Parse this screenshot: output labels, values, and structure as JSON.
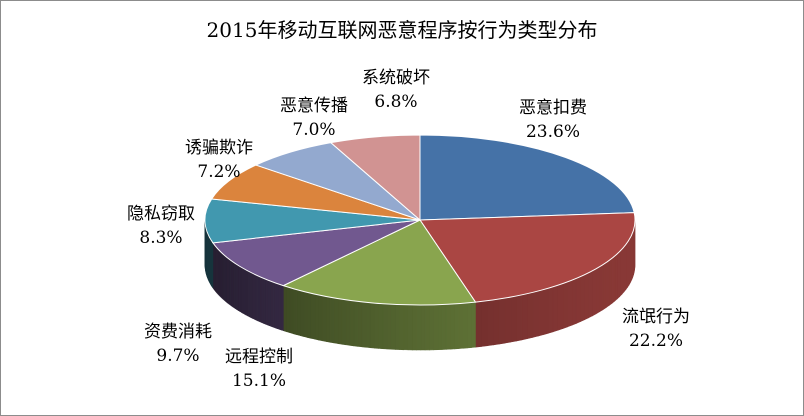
{
  "chart_data": {
    "type": "pie",
    "title": "2015年移动互联网恶意程序按行为类型分布",
    "legend": "none",
    "slices": [
      {
        "label": "恶意扣费",
        "value": 23.6,
        "value_label": "23.6%",
        "color": "#4572a7"
      },
      {
        "label": "流氓行为",
        "value": 22.2,
        "value_label": "22.2%",
        "color": "#aa4643"
      },
      {
        "label": "远程控制",
        "value": 15.1,
        "value_label": "15.1%",
        "color": "#89a54e"
      },
      {
        "label": "资费消耗",
        "value": 9.7,
        "value_label": "9.7%",
        "color": "#71588f"
      },
      {
        "label": "隐私窃取",
        "value": 8.3,
        "value_label": "8.3%",
        "color": "#4198af"
      },
      {
        "label": "诱骗欺诈",
        "value": 7.2,
        "value_label": "7.2%",
        "color": "#db843d"
      },
      {
        "label": "恶意传播",
        "value": 7.0,
        "value_label": "7.0%",
        "color": "#93a9cf"
      },
      {
        "label": "系统破坏",
        "value": 6.8,
        "value_label": "6.8%",
        "color": "#d19392"
      }
    ]
  }
}
